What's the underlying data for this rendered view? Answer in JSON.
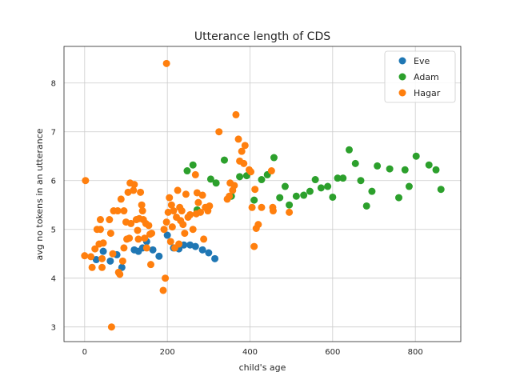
{
  "chart_data": {
    "type": "scatter",
    "title": "Utterance length of CDS",
    "xlabel": "child's age",
    "ylabel": "avg no tokens in an utterance",
    "xlim": [
      -50,
      910
    ],
    "ylim": [
      2.7,
      8.75
    ],
    "xticks": [
      0,
      200,
      400,
      600,
      800
    ],
    "yticks": [
      3,
      4,
      5,
      6,
      7,
      8
    ],
    "grid": true,
    "legend": "top-right",
    "series": [
      {
        "name": "Eve",
        "color": "#1f77b4",
        "points": [
          [
            28,
            4.38
          ],
          [
            45,
            4.55
          ],
          [
            62,
            4.35
          ],
          [
            78,
            4.48
          ],
          [
            90,
            4.22
          ],
          [
            120,
            4.58
          ],
          [
            130,
            4.55
          ],
          [
            140,
            4.62
          ],
          [
            150,
            4.75
          ],
          [
            165,
            4.58
          ],
          [
            180,
            4.45
          ],
          [
            200,
            4.88
          ],
          [
            215,
            4.62
          ],
          [
            228,
            4.6
          ],
          [
            240,
            4.68
          ],
          [
            255,
            4.68
          ],
          [
            268,
            4.65
          ],
          [
            285,
            4.58
          ],
          [
            300,
            4.52
          ],
          [
            315,
            4.4
          ]
        ]
      },
      {
        "name": "Adam",
        "color": "#2ca02c",
        "points": [
          [
            248,
            6.2
          ],
          [
            262,
            6.32
          ],
          [
            272,
            5.4
          ],
          [
            305,
            6.03
          ],
          [
            318,
            5.95
          ],
          [
            338,
            6.42
          ],
          [
            355,
            5.68
          ],
          [
            375,
            6.08
          ],
          [
            392,
            6.1
          ],
          [
            410,
            5.6
          ],
          [
            428,
            6.02
          ],
          [
            442,
            6.12
          ],
          [
            458,
            6.47
          ],
          [
            472,
            5.65
          ],
          [
            485,
            5.88
          ],
          [
            495,
            5.5
          ],
          [
            512,
            5.68
          ],
          [
            530,
            5.7
          ],
          [
            545,
            5.78
          ],
          [
            558,
            6.02
          ],
          [
            572,
            5.85
          ],
          [
            588,
            5.88
          ],
          [
            600,
            5.66
          ],
          [
            612,
            6.05
          ],
          [
            625,
            6.05
          ],
          [
            640,
            6.63
          ],
          [
            655,
            6.35
          ],
          [
            668,
            6.0
          ],
          [
            682,
            5.48
          ],
          [
            695,
            5.78
          ],
          [
            708,
            6.3
          ],
          [
            738,
            6.24
          ],
          [
            760,
            5.65
          ],
          [
            775,
            6.22
          ],
          [
            785,
            5.88
          ],
          [
            802,
            6.5
          ],
          [
            833,
            6.32
          ],
          [
            850,
            6.22
          ],
          [
            862,
            5.82
          ]
        ]
      },
      {
        "name": "Hagar",
        "color": "#ff7f0e",
        "points": [
          [
            2,
            6.0
          ],
          [
            0,
            4.46
          ],
          [
            15,
            4.44
          ],
          [
            18,
            4.22
          ],
          [
            25,
            4.6
          ],
          [
            30,
            5.0
          ],
          [
            35,
            4.7
          ],
          [
            38,
            5.2
          ],
          [
            42,
            4.4
          ],
          [
            42,
            4.22
          ],
          [
            45,
            4.72
          ],
          [
            38,
            5.0
          ],
          [
            60,
            5.2
          ],
          [
            63,
            4.92
          ],
          [
            68,
            4.5
          ],
          [
            65,
            3.0
          ],
          [
            70,
            5.38
          ],
          [
            80,
            5.38
          ],
          [
            82,
            4.12
          ],
          [
            85,
            4.08
          ],
          [
            88,
            5.62
          ],
          [
            92,
            4.35
          ],
          [
            95,
            5.38
          ],
          [
            95,
            4.62
          ],
          [
            100,
            5.15
          ],
          [
            102,
            4.8
          ],
          [
            105,
            5.76
          ],
          [
            108,
            4.82
          ],
          [
            110,
            5.95
          ],
          [
            112,
            5.12
          ],
          [
            118,
            5.8
          ],
          [
            120,
            5.92
          ],
          [
            125,
            5.2
          ],
          [
            128,
            4.98
          ],
          [
            130,
            4.8
          ],
          [
            132,
            5.22
          ],
          [
            135,
            5.76
          ],
          [
            138,
            5.5
          ],
          [
            140,
            5.38
          ],
          [
            142,
            5.2
          ],
          [
            145,
            4.82
          ],
          [
            148,
            5.12
          ],
          [
            150,
            4.62
          ],
          [
            155,
            5.08
          ],
          [
            158,
            4.9
          ],
          [
            160,
            4.28
          ],
          [
            162,
            4.92
          ],
          [
            190,
            3.75
          ],
          [
            195,
            4.0
          ],
          [
            192,
            5.0
          ],
          [
            198,
            5.15
          ],
          [
            198,
            8.4
          ],
          [
            202,
            5.35
          ],
          [
            205,
            5.65
          ],
          [
            208,
            4.75
          ],
          [
            210,
            5.5
          ],
          [
            212,
            5.05
          ],
          [
            215,
            5.38
          ],
          [
            218,
            4.62
          ],
          [
            222,
            5.25
          ],
          [
            225,
            5.8
          ],
          [
            228,
            4.7
          ],
          [
            230,
            5.45
          ],
          [
            232,
            5.18
          ],
          [
            235,
            5.38
          ],
          [
            238,
            5.1
          ],
          [
            242,
            4.92
          ],
          [
            245,
            5.72
          ],
          [
            250,
            5.25
          ],
          [
            255,
            5.3
          ],
          [
            262,
            5.0
          ],
          [
            268,
            6.12
          ],
          [
            270,
            5.32
          ],
          [
            272,
            5.75
          ],
          [
            275,
            5.55
          ],
          [
            280,
            5.35
          ],
          [
            285,
            5.7
          ],
          [
            288,
            4.8
          ],
          [
            292,
            5.45
          ],
          [
            298,
            5.38
          ],
          [
            302,
            5.48
          ],
          [
            325,
            7.0
          ],
          [
            345,
            5.62
          ],
          [
            350,
            5.68
          ],
          [
            352,
            5.95
          ],
          [
            358,
            5.8
          ],
          [
            362,
            5.9
          ],
          [
            366,
            7.35
          ],
          [
            372,
            6.85
          ],
          [
            375,
            6.4
          ],
          [
            380,
            6.6
          ],
          [
            385,
            6.35
          ],
          [
            388,
            6.72
          ],
          [
            398,
            6.22
          ],
          [
            402,
            6.18
          ],
          [
            405,
            5.45
          ],
          [
            410,
            4.65
          ],
          [
            412,
            5.82
          ],
          [
            415,
            5.02
          ],
          [
            420,
            5.1
          ],
          [
            428,
            5.45
          ],
          [
            452,
            6.2
          ],
          [
            455,
            5.45
          ],
          [
            456,
            5.38
          ],
          [
            495,
            5.35
          ]
        ]
      }
    ]
  }
}
